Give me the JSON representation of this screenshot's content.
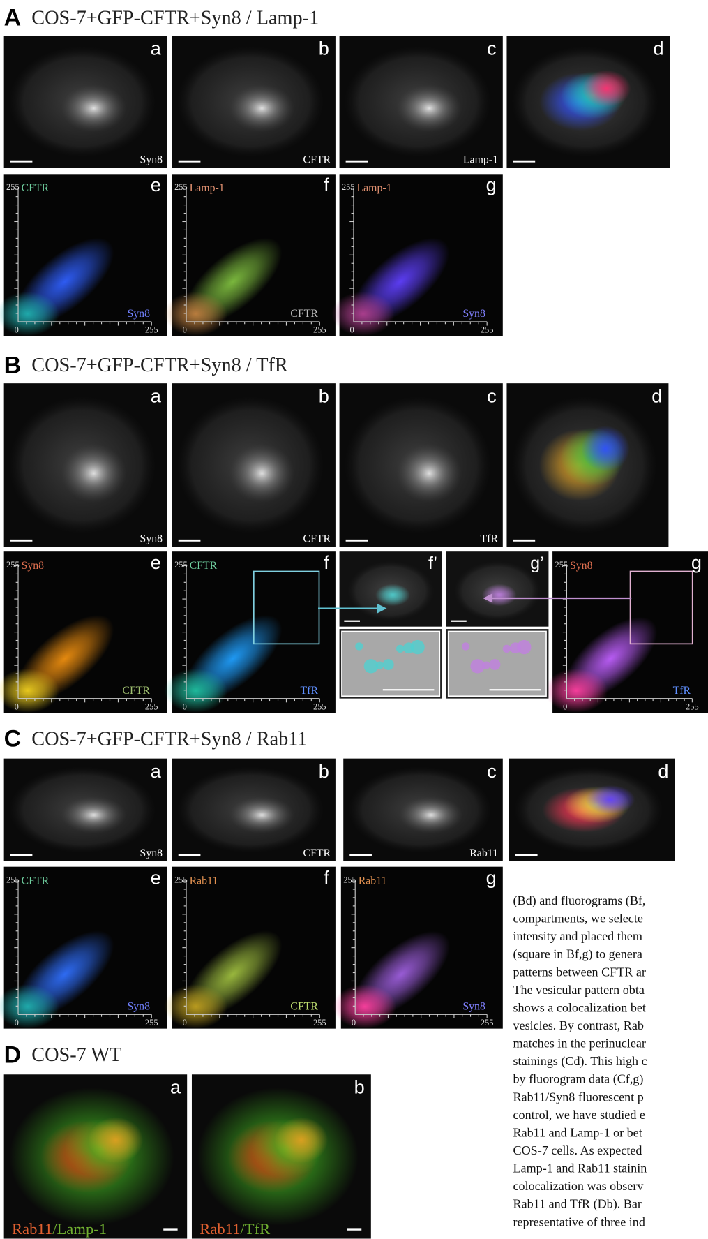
{
  "sections": [
    {
      "letter": "A",
      "title": "COS-7+GFP-CFTR+Syn8 / Lamp-1",
      "images": [
        {
          "letter": "a",
          "label": "Syn8"
        },
        {
          "letter": "b",
          "label": "CFTR"
        },
        {
          "letter": "c",
          "label": "Lamp-1"
        },
        {
          "letter": "d"
        }
      ],
      "fluorograms": [
        {
          "letter": "e",
          "y_label": "CFTR",
          "x_label": "Syn8",
          "axis_min": 0,
          "axis_max": 255
        },
        {
          "letter": "f",
          "y_label": "Lamp-1",
          "x_label": "CFTR",
          "axis_min": 0,
          "axis_max": 255
        },
        {
          "letter": "g",
          "y_label": "Lamp-1",
          "x_label": "Syn8",
          "axis_min": 0,
          "axis_max": 255
        }
      ]
    },
    {
      "letter": "B",
      "title": "COS-7+GFP-CFTR+Syn8 / TfR",
      "images": [
        {
          "letter": "a",
          "label": "Syn8"
        },
        {
          "letter": "b",
          "label": "CFTR"
        },
        {
          "letter": "c",
          "label": "TfR"
        },
        {
          "letter": "d"
        }
      ],
      "fluorograms": [
        {
          "letter": "e",
          "y_label": "Syn8",
          "x_label": "CFTR",
          "axis_min": 0,
          "axis_max": 255
        },
        {
          "letter": "f",
          "y_label": "CFTR",
          "x_label": "TfR",
          "axis_min": 0,
          "axis_max": 255
        },
        {
          "letter": "g",
          "y_label": "Syn8",
          "x_label": "TfR",
          "axis_min": 0,
          "axis_max": 255
        }
      ],
      "zooms": [
        {
          "letter": "f’"
        },
        {
          "letter": "g’"
        }
      ]
    },
    {
      "letter": "C",
      "title": "COS-7+GFP-CFTR+Syn8 / Rab11",
      "images": [
        {
          "letter": "a",
          "label": "Syn8"
        },
        {
          "letter": "b",
          "label": "CFTR"
        },
        {
          "letter": "c",
          "label": "Rab11"
        },
        {
          "letter": "d"
        }
      ],
      "fluorograms": [
        {
          "letter": "e",
          "y_label": "CFTR",
          "x_label": "Syn8",
          "axis_min": 0,
          "axis_max": 255
        },
        {
          "letter": "f",
          "y_label": "Rab11",
          "x_label": "CFTR",
          "axis_min": 0,
          "axis_max": 255
        },
        {
          "letter": "g",
          "y_label": "Rab11",
          "x_label": "Syn8",
          "axis_min": 0,
          "axis_max": 255
        }
      ]
    },
    {
      "letter": "D",
      "title": "COS-7 WT",
      "images": [
        {
          "letter": "a",
          "label_parts": [
            "Rab11",
            "/Lamp-1"
          ]
        },
        {
          "letter": "b",
          "label_parts": [
            "Rab11",
            "/TfR"
          ]
        }
      ]
    }
  ],
  "body_text": [
    "(Bd) and fluorograms (Bf,",
    "compartments, we selecte",
    "intensity and placed them",
    "(square in Bf,g) to genera",
    "patterns between CFTR ar",
    "The vesicular pattern obta",
    "shows a colocalization bet",
    "vesicles. By contrast, Rab",
    "matches in the perinuclear",
    "stainings (Cd). This high c",
    "by fluorogram data (Cf,g)",
    "Rab11/Syn8 fluorescent p",
    "control, we have studied e",
    "Rab11 and Lamp-1 or bet",
    "COS-7 cells. As expected",
    "Lamp-1 and Rab11 stainin",
    "colocalization was observ",
    "Rab11 and TfR (Db). Bar",
    "representative of three ind"
  ]
}
